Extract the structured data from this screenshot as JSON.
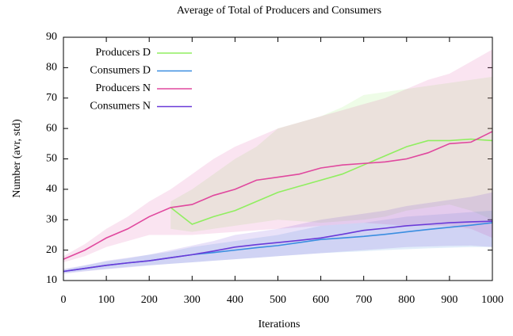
{
  "chart_data": {
    "type": "line",
    "title": "Average of Total of Producers and Consumers",
    "xlabel": "Iterations",
    "ylabel": "Number (avr, std)",
    "x": [
      0,
      50,
      100,
      150,
      200,
      250,
      300,
      350,
      400,
      450,
      500,
      550,
      600,
      650,
      700,
      750,
      800,
      850,
      900,
      950,
      1000
    ],
    "xlim": [
      0,
      1000
    ],
    "xticks": [
      0,
      100,
      200,
      300,
      400,
      500,
      600,
      700,
      800,
      900,
      1000
    ],
    "ylim": [
      10,
      90
    ],
    "yticks": [
      10,
      20,
      30,
      40,
      50,
      60,
      70,
      80,
      90
    ],
    "legend": "upper-left",
    "series": [
      {
        "name": "Producers D",
        "color": "#90ee60",
        "values": [
          null,
          null,
          null,
          null,
          null,
          34,
          28.5,
          31,
          33,
          36,
          39,
          41,
          43,
          45,
          48,
          51,
          54,
          56,
          56,
          56.5,
          56
        ],
        "lower": [
          null,
          null,
          null,
          null,
          null,
          27,
          26,
          27,
          28,
          29,
          30,
          29.5,
          29,
          29.5,
          30,
          31,
          33,
          34,
          35,
          33,
          30
        ],
        "upper": [
          null,
          null,
          null,
          null,
          null,
          36,
          40,
          45,
          50,
          54,
          60,
          62,
          64,
          67,
          71,
          72,
          73,
          74,
          75,
          76,
          77
        ]
      },
      {
        "name": "Consumers D",
        "color": "#3a8ee0",
        "values": [
          13,
          14,
          15,
          15.8,
          16.5,
          17.5,
          18.5,
          19.2,
          20,
          20.8,
          21.5,
          22.5,
          23.5,
          24,
          24.5,
          25.2,
          26,
          26.8,
          27.5,
          28.2,
          29
        ],
        "lower": [
          12.5,
          13.2,
          13.8,
          14.5,
          15,
          15.5,
          16,
          16.5,
          17,
          17.5,
          18,
          18.5,
          19,
          19.3,
          19.6,
          20,
          20.3,
          20.6,
          20.8,
          21,
          21
        ],
        "upper": [
          13.5,
          15,
          16.3,
          17.3,
          18.5,
          19.5,
          21,
          22,
          23,
          24,
          25,
          26.5,
          28,
          28.5,
          29,
          30,
          31,
          31.5,
          32,
          32.5,
          33
        ]
      },
      {
        "name": "Producers N",
        "color": "#e0489e",
        "values": [
          17,
          20,
          24,
          27,
          31,
          34,
          35,
          38,
          40,
          43,
          44,
          45,
          47,
          48,
          48.5,
          49,
          50,
          52,
          55,
          55.5,
          59
        ],
        "lower": [
          16,
          18,
          21,
          23,
          25,
          25,
          25,
          25.5,
          26,
          26.5,
          27,
          27.5,
          28,
          28.5,
          29,
          28.5,
          28,
          28,
          28,
          27,
          24
        ],
        "upper": [
          18,
          22,
          27,
          31,
          36,
          40,
          45,
          50,
          54,
          57,
          60,
          62,
          64,
          66,
          68,
          70,
          73,
          76,
          78,
          82,
          86
        ]
      },
      {
        "name": "Consumers N",
        "color": "#6a3ad8",
        "values": [
          13,
          14,
          15,
          15.8,
          16.5,
          17.5,
          18.5,
          19.7,
          21,
          21.8,
          22.5,
          23.2,
          24,
          25.2,
          26.5,
          27.2,
          28,
          28.5,
          29,
          29.3,
          29.5
        ],
        "lower": [
          12.2,
          13,
          13.7,
          14.3,
          15,
          15.5,
          16,
          16.5,
          17,
          17.5,
          18,
          18.5,
          19,
          19.5,
          20,
          20.5,
          21,
          21.2,
          21.4,
          21.5,
          21
        ],
        "upper": [
          13.8,
          15,
          16.5,
          17.5,
          18.5,
          20,
          21.5,
          23,
          25,
          26,
          27,
          28.5,
          30,
          31,
          32,
          33,
          34.5,
          35.5,
          36.5,
          37.5,
          39
        ]
      }
    ]
  }
}
